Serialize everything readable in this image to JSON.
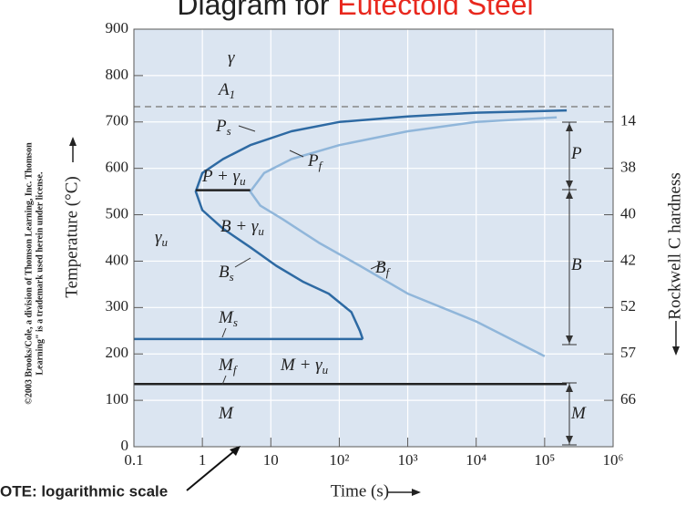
{
  "chart_data": {
    "type": "line",
    "title": [
      "Diagram for",
      "Eutectoid Steel"
    ],
    "x_label": "Time (s)",
    "y_label": "Temperature (°C)",
    "y2_label": "Rockwell C hardness",
    "note": "OTE: logarithmic scale",
    "credit": [
      "©2003 Brooks/Cole, a division of Thomson Learning, Inc. Thomson",
      "Learning\" is a trademark used herein under license."
    ],
    "log_x": true,
    "grid": true,
    "xlim": [
      0.1,
      1000000
    ],
    "xticks": [
      0.1,
      1,
      10,
      {
        "value": 100,
        "label": "10²"
      },
      {
        "value": 1000,
        "label": "10³"
      },
      {
        "value": 10000,
        "label": "10⁴"
      },
      {
        "value": 100000,
        "label": "10⁵"
      },
      {
        "value": 1000000,
        "label": "10⁶"
      }
    ],
    "ylim": [
      0,
      900
    ],
    "yticks": [
      0,
      100,
      200,
      300,
      400,
      500,
      600,
      700,
      800,
      900
    ],
    "hardness_scale": {
      "temperatures": [
        700,
        600,
        500,
        400,
        300,
        200,
        100
      ],
      "hardness": [
        14,
        38,
        40,
        42,
        52,
        57,
        66
      ]
    },
    "series": [
      {
        "color": "#888888",
        "dashed": true,
        "x": [
          0.1,
          1000000
        ],
        "values": [
          733,
          733
        ]
      },
      {
        "color": "#2e6aa3",
        "x": [
          210000,
          10000,
          1000,
          100,
          20,
          5,
          2,
          1,
          0.8,
          1,
          2,
          5,
          12,
          30,
          70,
          150,
          200,
          220
        ],
        "values": [
          725,
          720,
          712,
          700,
          680,
          650,
          620,
          590,
          550,
          510,
          470,
          430,
          390,
          355,
          330,
          290,
          250,
          232
        ]
      },
      {
        "color": "#90b6da",
        "x": [
          150000,
          10000,
          1000,
          100,
          20,
          8,
          5,
          7,
          15,
          50,
          200,
          1000,
          10000,
          100000
        ],
        "values": [
          710,
          700,
          680,
          650,
          620,
          590,
          550,
          520,
          490,
          440,
          390,
          330,
          270,
          195
        ]
      },
      {
        "color": "#2e6aa3",
        "x": [
          0.1,
          220
        ],
        "values": [
          232,
          232
        ]
      },
      {
        "color": "#222222",
        "x": [
          0.1,
          210000
        ],
        "values": [
          135,
          135
        ]
      },
      {
        "color": "#222222",
        "x": [
          0.8,
          5
        ],
        "values": [
          553,
          553
        ]
      }
    ],
    "labels": [
      {
        "text": "γ"
      },
      {
        "text": "A",
        "sub": "1"
      },
      {
        "text": "P",
        "sub": "s"
      },
      {
        "text": "P",
        "sub": "f"
      },
      {
        "text": "P + γ",
        "sub": "u"
      },
      {
        "text": "B + γ",
        "sub": "u"
      },
      {
        "text": "γ",
        "sub": "u"
      },
      {
        "text": "B",
        "sub": "s"
      },
      {
        "text": "B",
        "sub": "f"
      },
      {
        "text": "M",
        "sub": "s"
      },
      {
        "text": "M",
        "sub": "f"
      },
      {
        "text": "M + γ",
        "sub": "u"
      },
      {
        "text": "M"
      },
      {
        "text": "P"
      },
      {
        "text": "B"
      },
      {
        "text": "M"
      }
    ]
  }
}
